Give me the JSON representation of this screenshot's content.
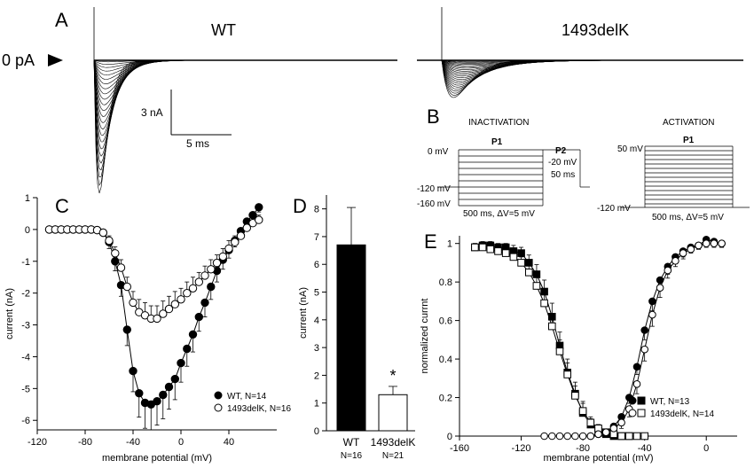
{
  "panel_a": {
    "letter": "A",
    "zero_label": "0 pA",
    "wt_title": "WT",
    "mut_title": "1493delK",
    "scale_current": "3 nA",
    "scale_time": "5 ms"
  },
  "panel_b": {
    "letter": "B",
    "inactivation_title": "INACTIVATION",
    "activation_title": "ACTIVATION",
    "inact": {
      "v0": "0 mV",
      "v120": "-120 mV",
      "v160": "-160 mV",
      "p1": "P1",
      "p2": "P2",
      "v20": "-20 mV",
      "dur50": "50 ms",
      "dur500": "500 ms, ΔV=5 mV"
    },
    "act": {
      "v50": "50 mV",
      "v120": "-120 mV",
      "p1": "P1",
      "dur500": "500 ms, ΔV=5 mV"
    }
  },
  "chart_data": [
    {
      "panel": "C",
      "type": "line",
      "xlabel": "membrane potential (mV)",
      "ylabel": "current (nA)",
      "xlim": [
        -120,
        80
      ],
      "ylim": [
        -6.3,
        1
      ],
      "xticks": [
        -120,
        -80,
        -40,
        0,
        40
      ],
      "yticks": [
        1,
        0,
        -1,
        -2,
        -3,
        -4,
        -5,
        -6
      ],
      "legend_position": "bottom-right",
      "x": [
        -110,
        -105,
        -100,
        -95,
        -90,
        -85,
        -80,
        -75,
        -70,
        -65,
        -60,
        -55,
        -50,
        -45,
        -40,
        -35,
        -30,
        -25,
        -20,
        -15,
        -10,
        -5,
        0,
        5,
        10,
        15,
        20,
        25,
        30,
        35,
        40,
        45,
        50,
        55,
        60,
        65
      ],
      "series": [
        {
          "name": "WT, N=14",
          "marker": "filled-circle",
          "values": [
            0,
            0,
            0,
            0,
            0,
            0,
            0,
            0,
            -0.02,
            -0.1,
            -0.4,
            -1.0,
            -1.75,
            -3.15,
            -4.45,
            -5.15,
            -5.45,
            -5.5,
            -5.4,
            -5.2,
            -4.95,
            -4.7,
            -4.2,
            -3.75,
            -3.3,
            -2.75,
            -2.3,
            -1.8,
            -1.3,
            -0.95,
            -0.65,
            -0.35,
            -0.05,
            0.25,
            0.45,
            0.7
          ],
          "error": [
            0,
            0,
            0,
            0,
            0,
            0,
            0,
            0,
            0.05,
            0.1,
            0.2,
            0.3,
            0.35,
            0.5,
            0.65,
            0.75,
            0.8,
            0.8,
            0.75,
            0.75,
            0.7,
            0.65,
            0.6,
            0.55,
            0.55,
            0.45,
            0.45,
            0.4,
            0.35,
            0.3,
            0.25,
            0.2,
            0.15,
            0.15,
            0.15,
            0.15
          ]
        },
        {
          "name": "1493delK, N=16",
          "marker": "open-circle",
          "values": [
            0,
            0,
            0,
            0,
            0,
            0,
            0,
            0,
            -0.02,
            -0.1,
            -0.35,
            -0.75,
            -1.2,
            -1.8,
            -2.3,
            -2.6,
            -2.7,
            -2.8,
            -2.8,
            -2.65,
            -2.5,
            -2.35,
            -2.2,
            -2.0,
            -1.85,
            -1.65,
            -1.45,
            -1.25,
            -1.05,
            -0.85,
            -0.6,
            -0.4,
            -0.2,
            0.05,
            0.2,
            0.3
          ],
          "error": [
            0,
            0,
            0,
            0,
            0,
            0,
            0,
            0,
            0.05,
            0.1,
            0.15,
            0.2,
            0.25,
            0.3,
            0.35,
            0.4,
            0.4,
            0.4,
            0.4,
            0.4,
            0.4,
            0.4,
            0.35,
            0.35,
            0.35,
            0.3,
            0.3,
            0.3,
            0.25,
            0.25,
            0.25,
            0.2,
            0.2,
            0.2,
            0.15,
            0.15
          ]
        }
      ]
    },
    {
      "panel": "D",
      "type": "bar",
      "ylabel": "current (nA)",
      "ylim": [
        0,
        8.5
      ],
      "yticks": [
        0,
        1,
        2,
        3,
        4,
        5,
        6,
        7,
        8
      ],
      "categories": [
        "WT",
        "1493delK"
      ],
      "sublabels": [
        "N=16",
        "N=21"
      ],
      "values": [
        6.7,
        1.3
      ],
      "error": [
        1.35,
        0.3
      ],
      "fills": [
        "#000000",
        "#ffffff"
      ],
      "significance": "*"
    },
    {
      "panel": "E",
      "type": "line",
      "xlabel": "membrane potential (mV)",
      "ylabel": "normalized currnt",
      "xlim": [
        -160,
        20
      ],
      "ylim": [
        0,
        1.04
      ],
      "xticks": [
        -160,
        -120,
        -80,
        -40,
        0
      ],
      "yticks": [
        0,
        0.2,
        0.4,
        0.6,
        0.8,
        1
      ],
      "legend_position": "bottom-right",
      "legend": [
        {
          "name": "WT, N=13",
          "markers": [
            "filled-circle",
            "filled-square"
          ]
        },
        {
          "name": "1493delK, N=14",
          "markers": [
            "open-circle",
            "open-square"
          ]
        }
      ],
      "series": [
        {
          "role": "WT inactivation",
          "marker": "filled-square",
          "x": [
            -150,
            -145,
            -140,
            -135,
            -130,
            -125,
            -120,
            -115,
            -110,
            -105,
            -100,
            -95,
            -90,
            -85,
            -80,
            -75,
            -70,
            -65,
            -60,
            -55,
            -50
          ],
          "values": [
            0.98,
            0.99,
            0.99,
            0.98,
            0.98,
            0.96,
            0.95,
            0.9,
            0.84,
            0.75,
            0.62,
            0.47,
            0.33,
            0.22,
            0.12,
            0.06,
            0.03,
            0.01,
            0.0,
            0.0,
            0.0
          ],
          "error": [
            0.02,
            0.02,
            0.02,
            0.02,
            0.02,
            0.03,
            0.03,
            0.04,
            0.05,
            0.06,
            0.07,
            0.07,
            0.07,
            0.06,
            0.05,
            0.03,
            0.02,
            0.01,
            0.01,
            0.01,
            0.01
          ]
        },
        {
          "role": "1493delK inactivation",
          "marker": "open-square",
          "x": [
            -150,
            -145,
            -140,
            -135,
            -130,
            -125,
            -120,
            -115,
            -110,
            -105,
            -100,
            -95,
            -90,
            -85,
            -80,
            -75,
            -70,
            -65,
            -60,
            -55,
            -50,
            -45,
            -40
          ],
          "values": [
            0.98,
            0.98,
            0.97,
            0.96,
            0.95,
            0.93,
            0.9,
            0.85,
            0.78,
            0.69,
            0.57,
            0.44,
            0.32,
            0.21,
            0.13,
            0.07,
            0.04,
            0.02,
            0.01,
            0.0,
            0.0,
            0.0,
            0.0
          ],
          "error": [
            0.02,
            0.02,
            0.02,
            0.02,
            0.03,
            0.03,
            0.03,
            0.04,
            0.05,
            0.06,
            0.06,
            0.06,
            0.06,
            0.05,
            0.05,
            0.03,
            0.02,
            0.01,
            0.01,
            0.01,
            0.01,
            0.01,
            0.01
          ]
        },
        {
          "role": "WT activation",
          "marker": "filled-circle",
          "x": [
            -75,
            -70,
            -65,
            -60,
            -55,
            -50,
            -45,
            -40,
            -35,
            -30,
            -25,
            -20,
            -15,
            -10,
            -5,
            0,
            5,
            10
          ],
          "values": [
            0.0,
            0.01,
            0.02,
            0.05,
            0.1,
            0.2,
            0.36,
            0.55,
            0.7,
            0.81,
            0.88,
            0.93,
            0.96,
            0.98,
            0.99,
            1.02,
            1.01,
            1.0
          ],
          "error": [
            0.01,
            0.01,
            0.01,
            0.02,
            0.02,
            0.03,
            0.04,
            0.05,
            0.05,
            0.04,
            0.04,
            0.03,
            0.03,
            0.02,
            0.02,
            0.02,
            0.02,
            0.02
          ]
        },
        {
          "role": "1493delK activation",
          "marker": "open-circle",
          "x": [
            -105,
            -100,
            -95,
            -90,
            -85,
            -80,
            -75,
            -70,
            -65,
            -60,
            -55,
            -50,
            -45,
            -40,
            -35,
            -30,
            -25,
            -20,
            -15,
            -10,
            -5,
            0,
            5,
            10
          ],
          "values": [
            0.0,
            0.0,
            0.0,
            0.0,
            0.0,
            0.0,
            0.0,
            0.01,
            0.02,
            0.04,
            0.07,
            0.14,
            0.27,
            0.45,
            0.63,
            0.77,
            0.86,
            0.91,
            0.95,
            0.97,
            0.99,
            1.0,
            1.0,
            1.0
          ],
          "error": [
            0.01,
            0.01,
            0.01,
            0.01,
            0.01,
            0.01,
            0.01,
            0.01,
            0.01,
            0.02,
            0.03,
            0.04,
            0.05,
            0.06,
            0.06,
            0.05,
            0.04,
            0.03,
            0.03,
            0.02,
            0.02,
            0.02,
            0.02,
            0.02
          ]
        }
      ]
    }
  ]
}
